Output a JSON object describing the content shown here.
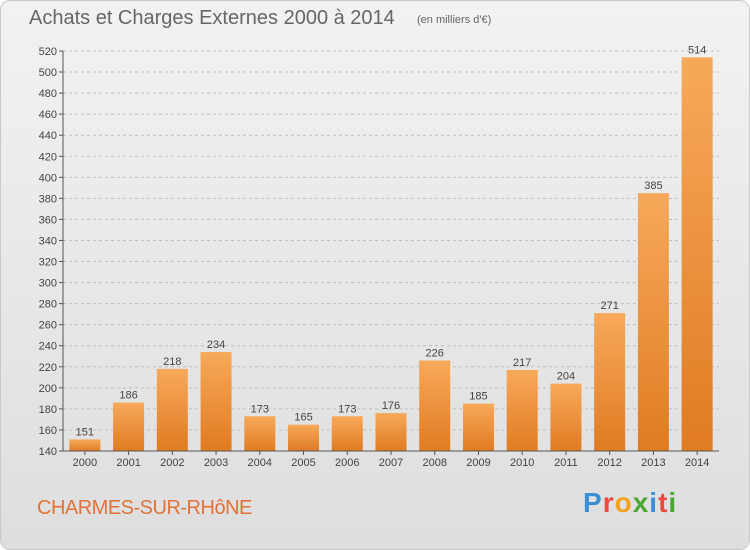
{
  "header": {
    "title": "Achats et Charges Externes 2000 à 2014",
    "subtitle": "(en milliers d'€)"
  },
  "footer": {
    "commune": "CHARMES-SUR-RHôNE",
    "logo_text": "Proxiti",
    "logo_colors": [
      "#3a8fd6",
      "#e94b3c",
      "#f2a31b",
      "#4aa82f",
      "#3a8fd6",
      "#e94b3c",
      "#4aa82f"
    ]
  },
  "colors": {
    "bar_light": "#f7a95a",
    "bar_dark": "#e07b22",
    "axis": "#555555",
    "grid": "#bfbfbf"
  },
  "chart_data": {
    "type": "bar",
    "title": "Achats et Charges Externes 2000 à 2014",
    "subtitle": "(en milliers d'€)",
    "xlabel": "",
    "ylabel": "",
    "categories": [
      "2000",
      "2001",
      "2002",
      "2003",
      "2004",
      "2005",
      "2006",
      "2007",
      "2008",
      "2009",
      "2010",
      "2011",
      "2012",
      "2013",
      "2014"
    ],
    "values": [
      151,
      186,
      218,
      234,
      173,
      165,
      173,
      176,
      226,
      185,
      217,
      204,
      271,
      385,
      514
    ],
    "ylim": [
      140,
      520
    ],
    "yticks": [
      140,
      160,
      180,
      200,
      220,
      240,
      260,
      280,
      300,
      320,
      340,
      360,
      380,
      400,
      420,
      440,
      460,
      480,
      500,
      520
    ],
    "grid": true,
    "legend": "none"
  }
}
